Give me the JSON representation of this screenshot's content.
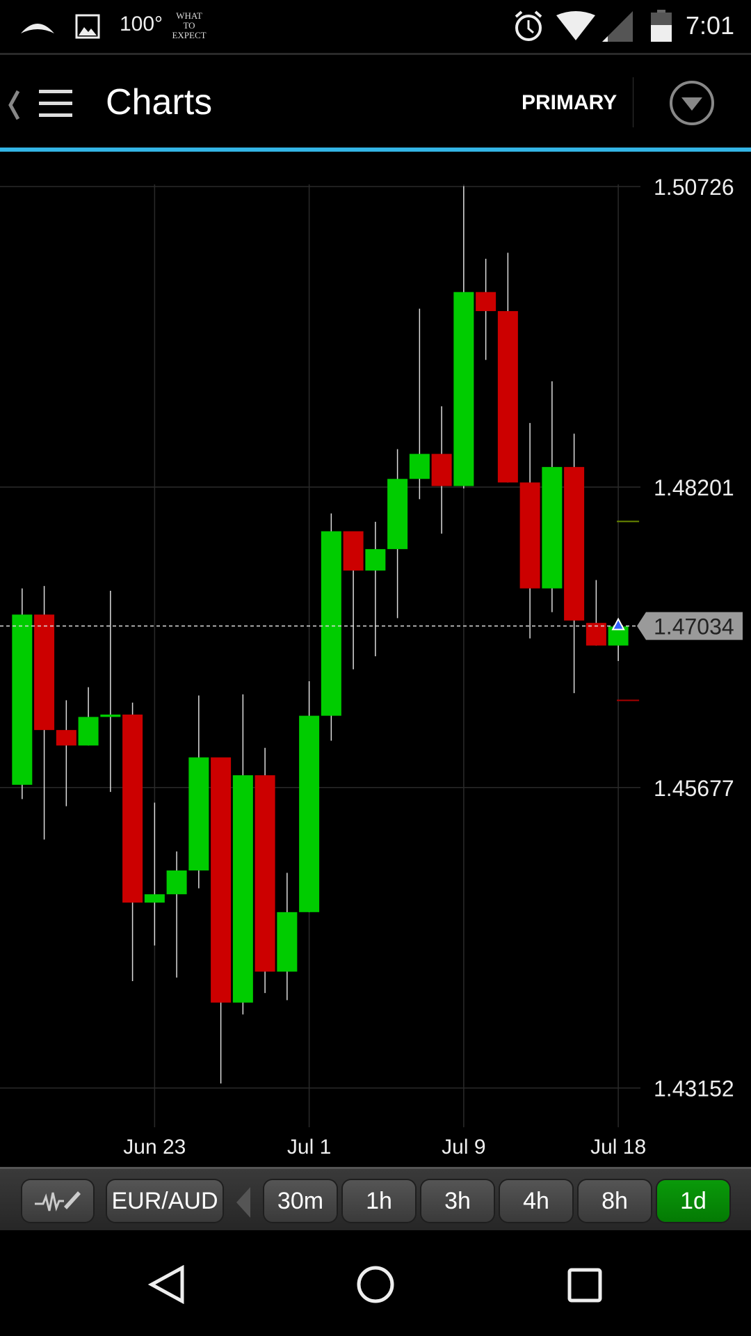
{
  "status_bar": {
    "temperature": "100°",
    "app_logo_text": "WHAT TO EXPECT",
    "time": "7:01",
    "icons": [
      "cloud-icon",
      "image-icon",
      "alarm-icon",
      "wifi-icon",
      "signal-icon",
      "battery-icon"
    ]
  },
  "header": {
    "title": "Charts",
    "layout_label": "PRIMARY",
    "icons": [
      "back-chevron-icon",
      "menu-icon",
      "dropdown-circle-icon"
    ]
  },
  "colors": {
    "accent": "#33b5e5",
    "up": "#00cc00",
    "down": "#cc0000",
    "active_button": "#088c08"
  },
  "chart_data": {
    "type": "candlestick",
    "instrument": "EUR/AUD",
    "timeframe": "1d",
    "y_ticks": [
      "1.50726",
      "1.48201",
      "1.45677",
      "1.43152"
    ],
    "ylim": [
      1.43,
      1.509
    ],
    "x_ticks": [
      {
        "label": "Jun 23",
        "index": 6
      },
      {
        "label": "Jul 1",
        "index": 13
      },
      {
        "label": "Jul 9",
        "index": 20
      },
      {
        "label": "Jul 18",
        "index": 27
      }
    ],
    "current_price": "1.47034",
    "grid": true,
    "candles": [
      {
        "o": 1.457,
        "h": 1.4735,
        "l": 1.4558,
        "c": 1.4713
      },
      {
        "o": 1.4713,
        "h": 1.4737,
        "l": 1.4524,
        "c": 1.4616
      },
      {
        "o": 1.4616,
        "h": 1.4641,
        "l": 1.4552,
        "c": 1.4603
      },
      {
        "o": 1.4603,
        "h": 1.4652,
        "l": 1.4603,
        "c": 1.4627
      },
      {
        "o": 1.4627,
        "h": 1.4733,
        "l": 1.4564,
        "c": 1.4629
      },
      {
        "o": 1.4629,
        "h": 1.4639,
        "l": 1.4405,
        "c": 1.4471
      },
      {
        "o": 1.4471,
        "h": 1.4555,
        "l": 1.4435,
        "c": 1.4478
      },
      {
        "o": 1.4478,
        "h": 1.4514,
        "l": 1.4408,
        "c": 1.4498
      },
      {
        "o": 1.4498,
        "h": 1.4645,
        "l": 1.4483,
        "c": 1.4593
      },
      {
        "o": 1.4593,
        "h": 1.4593,
        "l": 1.4319,
        "c": 1.4387
      },
      {
        "o": 1.4387,
        "h": 1.4646,
        "l": 1.4377,
        "c": 1.4578
      },
      {
        "o": 1.4578,
        "h": 1.4601,
        "l": 1.4395,
        "c": 1.4413
      },
      {
        "o": 1.4413,
        "h": 1.4496,
        "l": 1.4389,
        "c": 1.4463
      },
      {
        "o": 1.4463,
        "h": 1.4657,
        "l": 1.4463,
        "c": 1.4628
      },
      {
        "o": 1.4628,
        "h": 1.4798,
        "l": 1.4607,
        "c": 1.4783
      },
      {
        "o": 1.4783,
        "h": 1.4783,
        "l": 1.4667,
        "c": 1.475
      },
      {
        "o": 1.475,
        "h": 1.4791,
        "l": 1.4678,
        "c": 1.4768
      },
      {
        "o": 1.4768,
        "h": 1.4852,
        "l": 1.471,
        "c": 1.4827
      },
      {
        "o": 1.4827,
        "h": 1.497,
        "l": 1.481,
        "c": 1.4848
      },
      {
        "o": 1.4848,
        "h": 1.4888,
        "l": 1.4781,
        "c": 1.4821
      },
      {
        "o": 1.4821,
        "h": 1.5073,
        "l": 1.4819,
        "c": 1.4984
      },
      {
        "o": 1.4984,
        "h": 1.5012,
        "l": 1.4927,
        "c": 1.4968
      },
      {
        "o": 1.4968,
        "h": 1.5017,
        "l": 1.4824,
        "c": 1.4824
      },
      {
        "o": 1.4824,
        "h": 1.4874,
        "l": 1.4693,
        "c": 1.4735
      },
      {
        "o": 1.4735,
        "h": 1.4909,
        "l": 1.4715,
        "c": 1.4837
      },
      {
        "o": 1.4837,
        "h": 1.4865,
        "l": 1.4647,
        "c": 1.4708
      },
      {
        "o": 1.4706,
        "h": 1.4742,
        "l": 1.4687,
        "c": 1.4687
      },
      {
        "o": 1.4687,
        "h": 1.4703,
        "l": 1.4674,
        "c": 1.4703
      }
    ]
  },
  "toolbar": {
    "indicator_icon": "pulse-pencil-icon",
    "symbol": "EUR/AUD",
    "timeframes": [
      "30m",
      "1h",
      "3h",
      "4h",
      "8h",
      "1d"
    ],
    "active_timeframe": "1d"
  },
  "nav": {
    "icons": [
      "back-icon",
      "home-icon",
      "recents-icon"
    ]
  }
}
